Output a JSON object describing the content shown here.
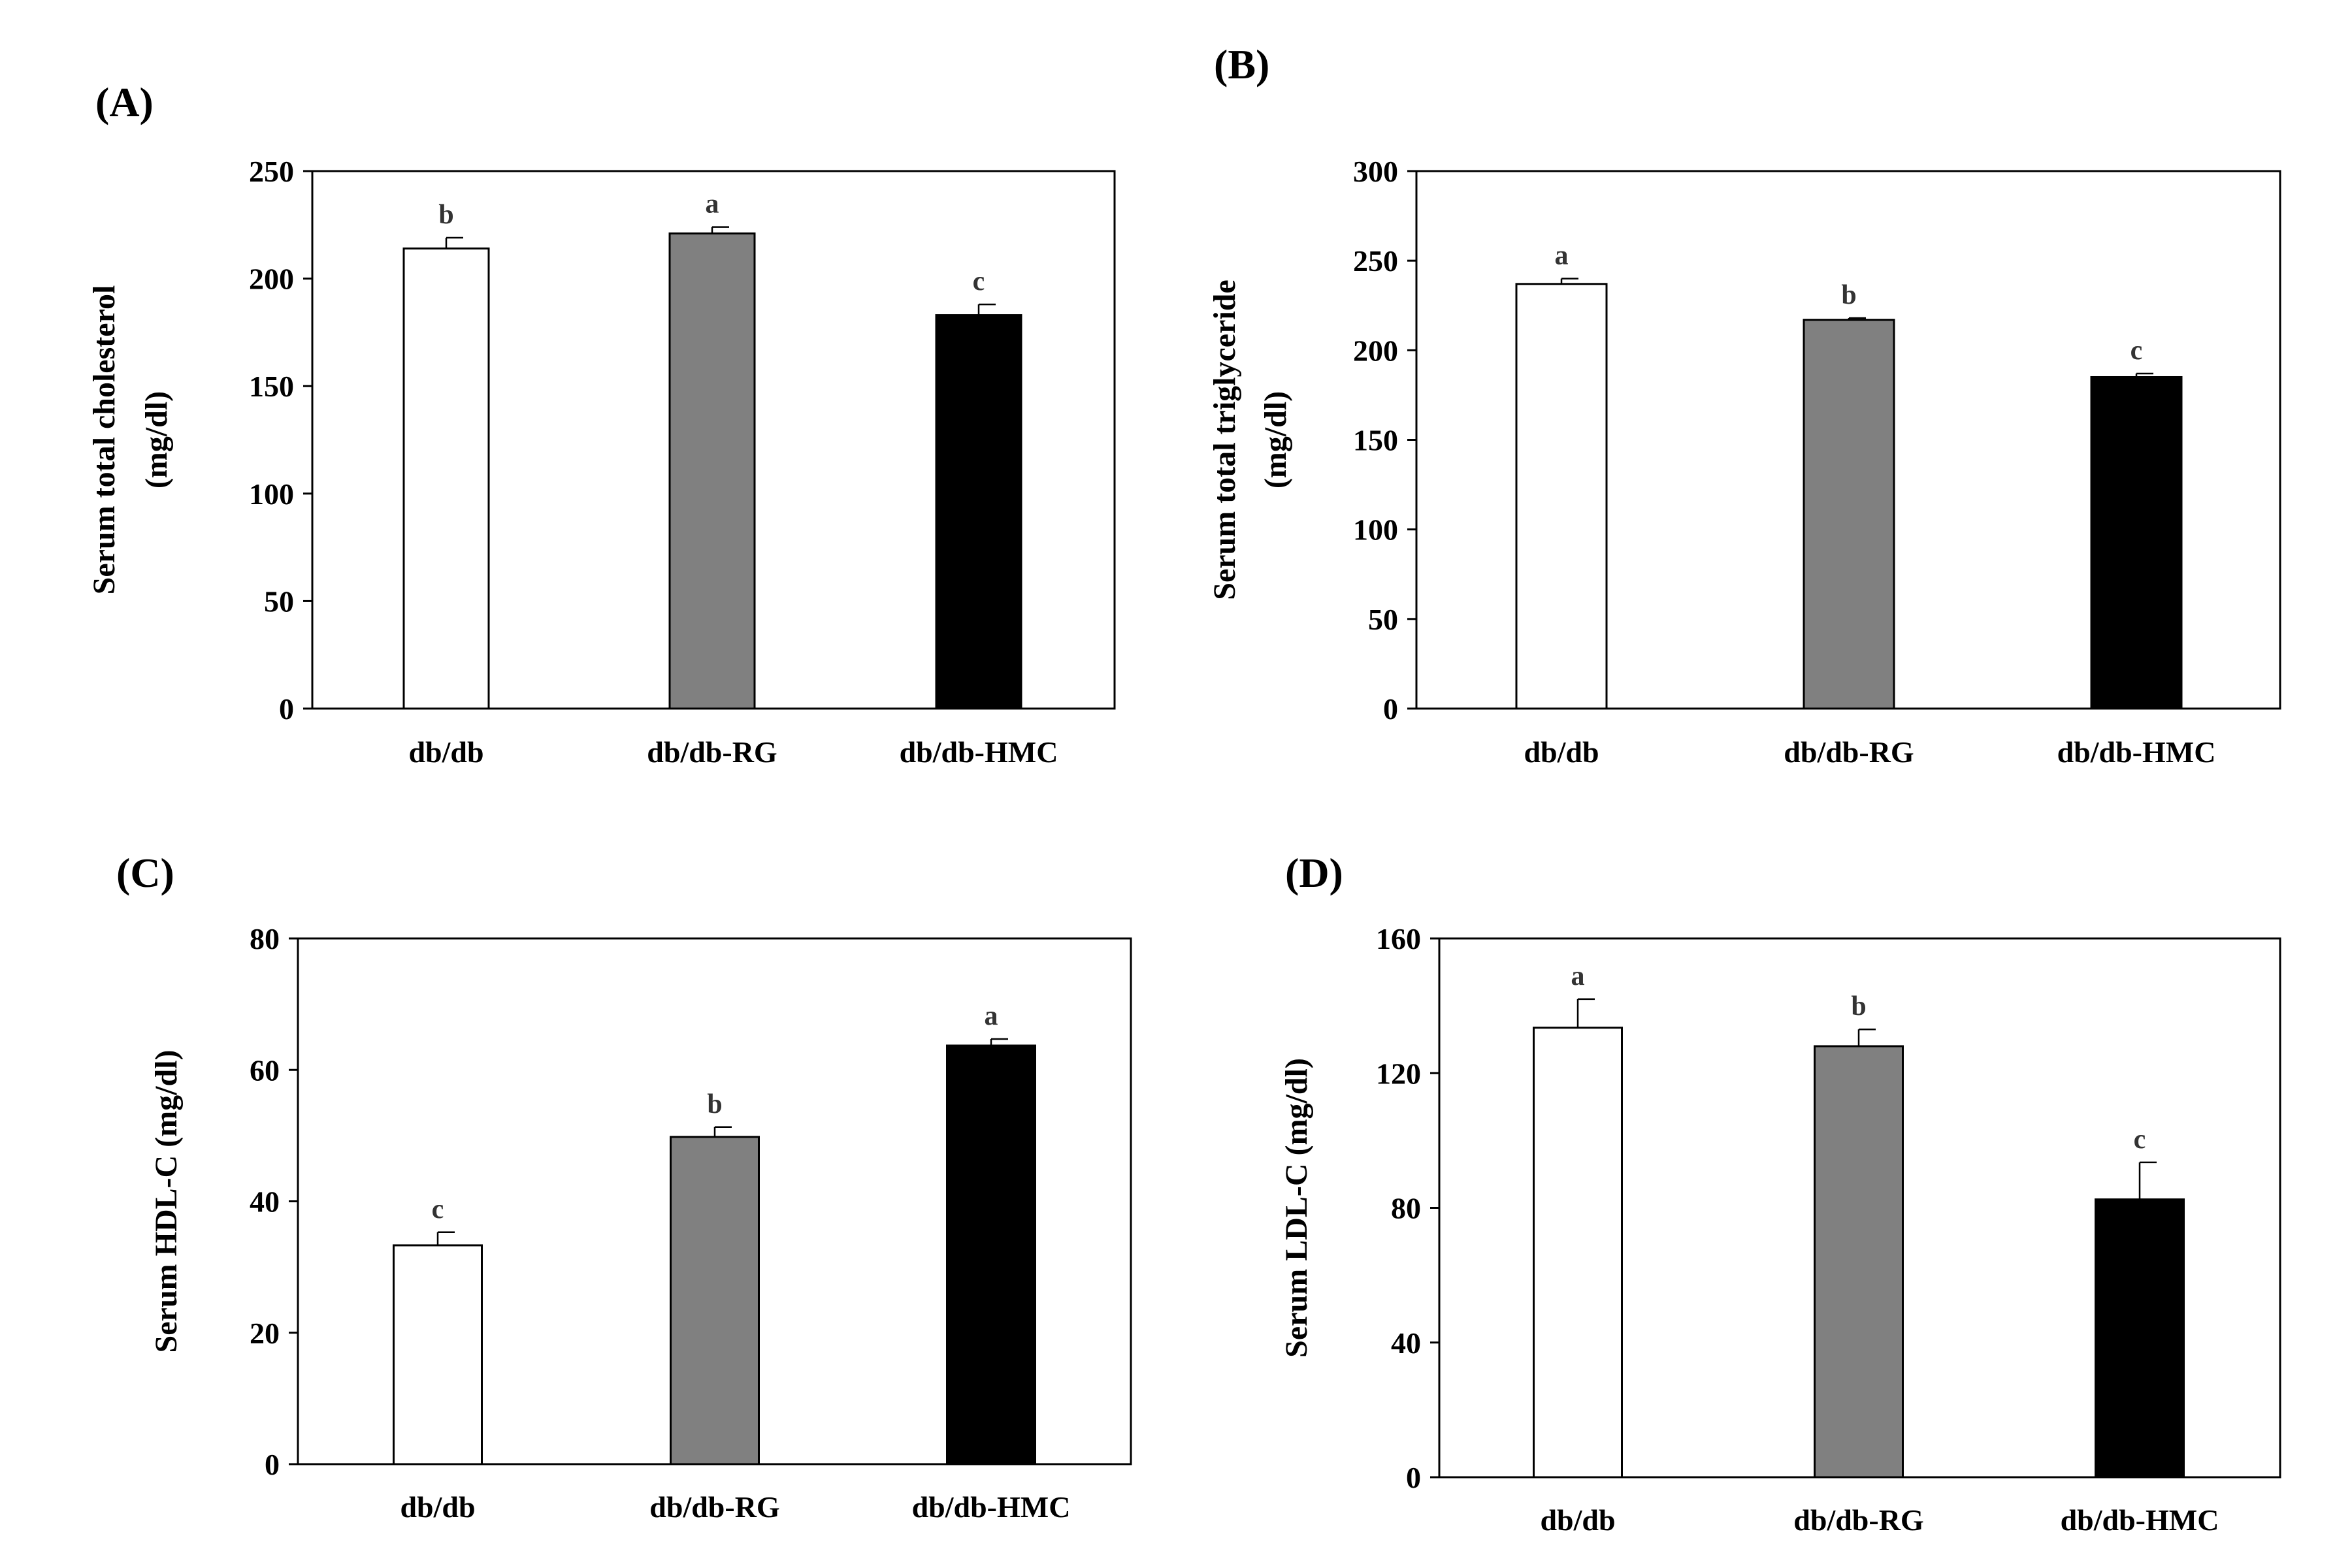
{
  "figure": {
    "colors": {
      "db_db": "#ffffff",
      "db_db_RG": "#808080",
      "db_db_HMC": "#000000",
      "axis": "#000000",
      "significance_text": "#333333"
    }
  },
  "chart_data": [
    {
      "panel": "(A)",
      "type": "bar",
      "categories": [
        "db/db",
        "db/db-RG",
        "db/db-HMC"
      ],
      "values": [
        214,
        221,
        183
      ],
      "errors": [
        5,
        3,
        5
      ],
      "significance": [
        "b",
        "a",
        "c"
      ],
      "ylabel_lines": [
        "Serum total cholesterol",
        "(mg/dl)"
      ],
      "ylim": [
        0,
        250
      ],
      "yticks": [
        0,
        50,
        100,
        150,
        200,
        250
      ],
      "xlabel": "",
      "legend": "none"
    },
    {
      "panel": "(B)",
      "type": "bar",
      "categories": [
        "db/db",
        "db/db-RG",
        "db/db-HMC"
      ],
      "values": [
        237,
        217,
        185
      ],
      "errors": [
        3,
        1,
        2
      ],
      "significance": [
        "a",
        "b",
        "c"
      ],
      "ylabel_lines": [
        "Serum total triglyceride",
        "(mg/dl)"
      ],
      "ylim": [
        0,
        300
      ],
      "yticks": [
        0,
        50,
        100,
        150,
        200,
        250,
        300
      ],
      "xlabel": "",
      "legend": "none"
    },
    {
      "panel": "(C)",
      "type": "bar",
      "categories": [
        "db/db",
        "db/db-RG",
        "db/db-HMC"
      ],
      "values": [
        33.3,
        49.8,
        63.7
      ],
      "errors": [
        2.0,
        1.5,
        1.0
      ],
      "significance": [
        "c",
        "b",
        "a"
      ],
      "ylabel_lines": [
        "Serum HDL-C  (mg/dl)"
      ],
      "ylim": [
        0,
        80
      ],
      "yticks": [
        0,
        20,
        40,
        60,
        80
      ],
      "xlabel": "",
      "legend": "none"
    },
    {
      "panel": "(D)",
      "type": "bar",
      "categories": [
        "db/db",
        "db/db-RG",
        "db/db-HMC"
      ],
      "values": [
        133.5,
        128,
        82.5
      ],
      "errors": [
        8.5,
        5,
        11
      ],
      "significance": [
        "a",
        "b",
        "c"
      ],
      "ylabel_lines": [
        "Serum LDL-C  (mg/dl)"
      ],
      "ylim": [
        0,
        160
      ],
      "yticks": [
        0,
        40,
        80,
        120,
        160
      ],
      "xlabel": "",
      "legend": "none"
    }
  ]
}
